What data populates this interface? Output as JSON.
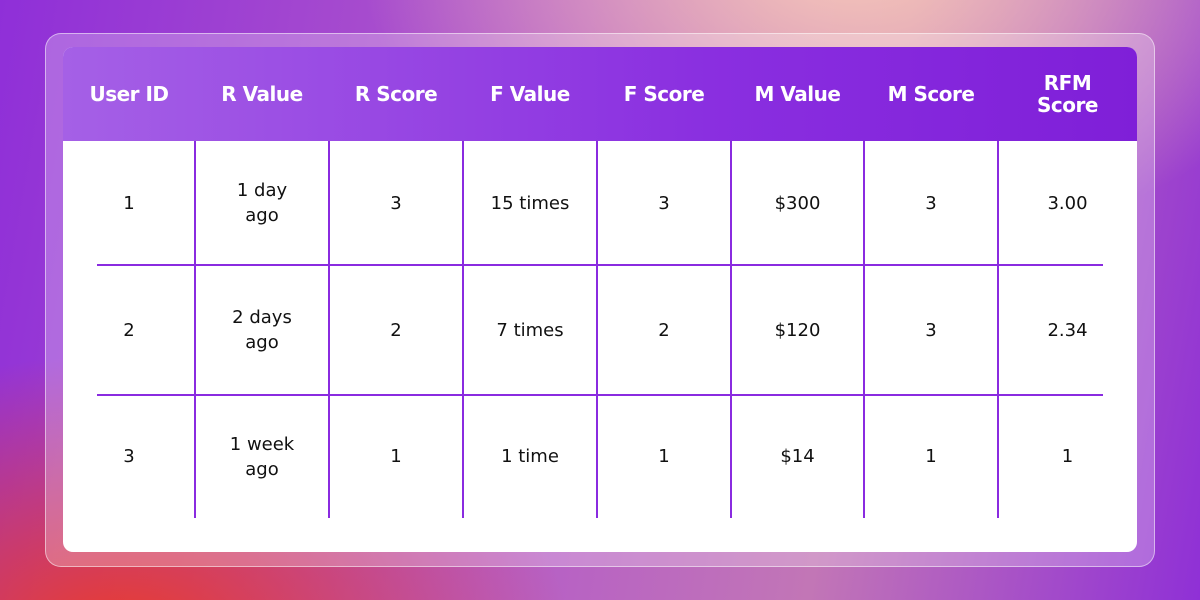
{
  "table": {
    "header": [
      "User ID",
      "R Value",
      "R Score",
      "F Value",
      "F Score",
      "M Value",
      "M Score",
      "RFM Score"
    ],
    "rows": [
      [
        "1",
        "1 day ago",
        "3",
        "15 times",
        "3",
        "$300",
        "3",
        "3.00"
      ],
      [
        "2",
        "2 days ago",
        "2",
        "7 times",
        "2",
        "$120",
        "3",
        "2.34"
      ],
      [
        "3",
        "1 week ago",
        "1",
        "1 time",
        "1",
        "$14",
        "1",
        "1"
      ]
    ]
  }
}
